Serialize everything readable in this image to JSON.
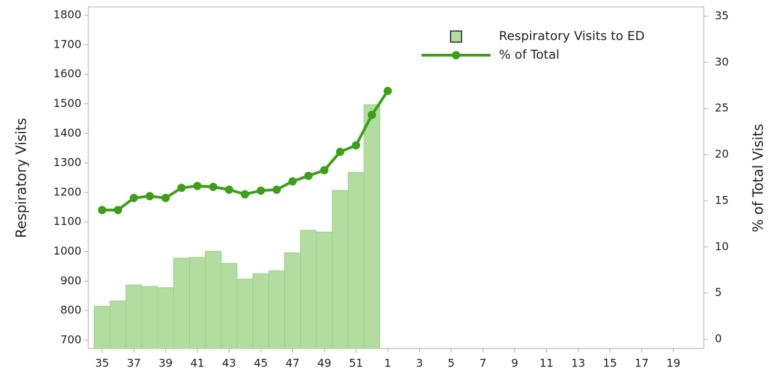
{
  "chart_data": {
    "type": "bar-line",
    "y_label": "Respiratory Visits",
    "y2_label": "% of Total Visits",
    "categories": [
      "35",
      null,
      "37",
      null,
      "39",
      null,
      "41",
      null,
      "43",
      null,
      "45",
      null,
      "47",
      null,
      "49",
      null,
      "51",
      null,
      "1",
      null,
      "3",
      null,
      "5",
      null,
      "7",
      null,
      "9",
      null,
      "11",
      null,
      "13",
      null,
      "15",
      null,
      "17",
      null,
      "19",
      null
    ],
    "series": [
      {
        "name": "Respiratory Visits to ED",
        "kind": "bar",
        "color": "#b3dca0",
        "values": [
          815,
          833,
          887,
          882,
          878,
          978,
          980,
          1001,
          960,
          907,
          925,
          935,
          996,
          1072,
          1066,
          1207,
          1268,
          1497,
          null,
          null,
          null,
          null,
          null,
          null,
          null,
          null,
          null,
          null,
          null,
          null,
          null,
          null,
          null,
          null,
          null,
          null,
          null,
          null
        ]
      },
      {
        "name": "% of Total",
        "kind": "line",
        "axis": "y2",
        "color": "#3e9e1b",
        "values": [
          14.0,
          14.0,
          15.3,
          15.5,
          15.3,
          16.4,
          16.6,
          16.5,
          16.2,
          15.7,
          16.1,
          16.2,
          17.1,
          17.7,
          18.3,
          20.3,
          21.0,
          24.3,
          26.9,
          null,
          null,
          null,
          null,
          null,
          null,
          null,
          null,
          null,
          null,
          null,
          null,
          null,
          null,
          null,
          null,
          null,
          null,
          null
        ]
      }
    ],
    "ylim": [
      672,
      1828
    ],
    "yticks": [
      700,
      800,
      900,
      1000,
      1100,
      1200,
      1300,
      1400,
      1500,
      1600,
      1700,
      1800
    ],
    "y2lim": [
      -1,
      36
    ],
    "y2ticks": [
      0,
      5,
      10,
      15,
      20,
      25,
      30,
      35
    ],
    "legend": "top-right"
  }
}
